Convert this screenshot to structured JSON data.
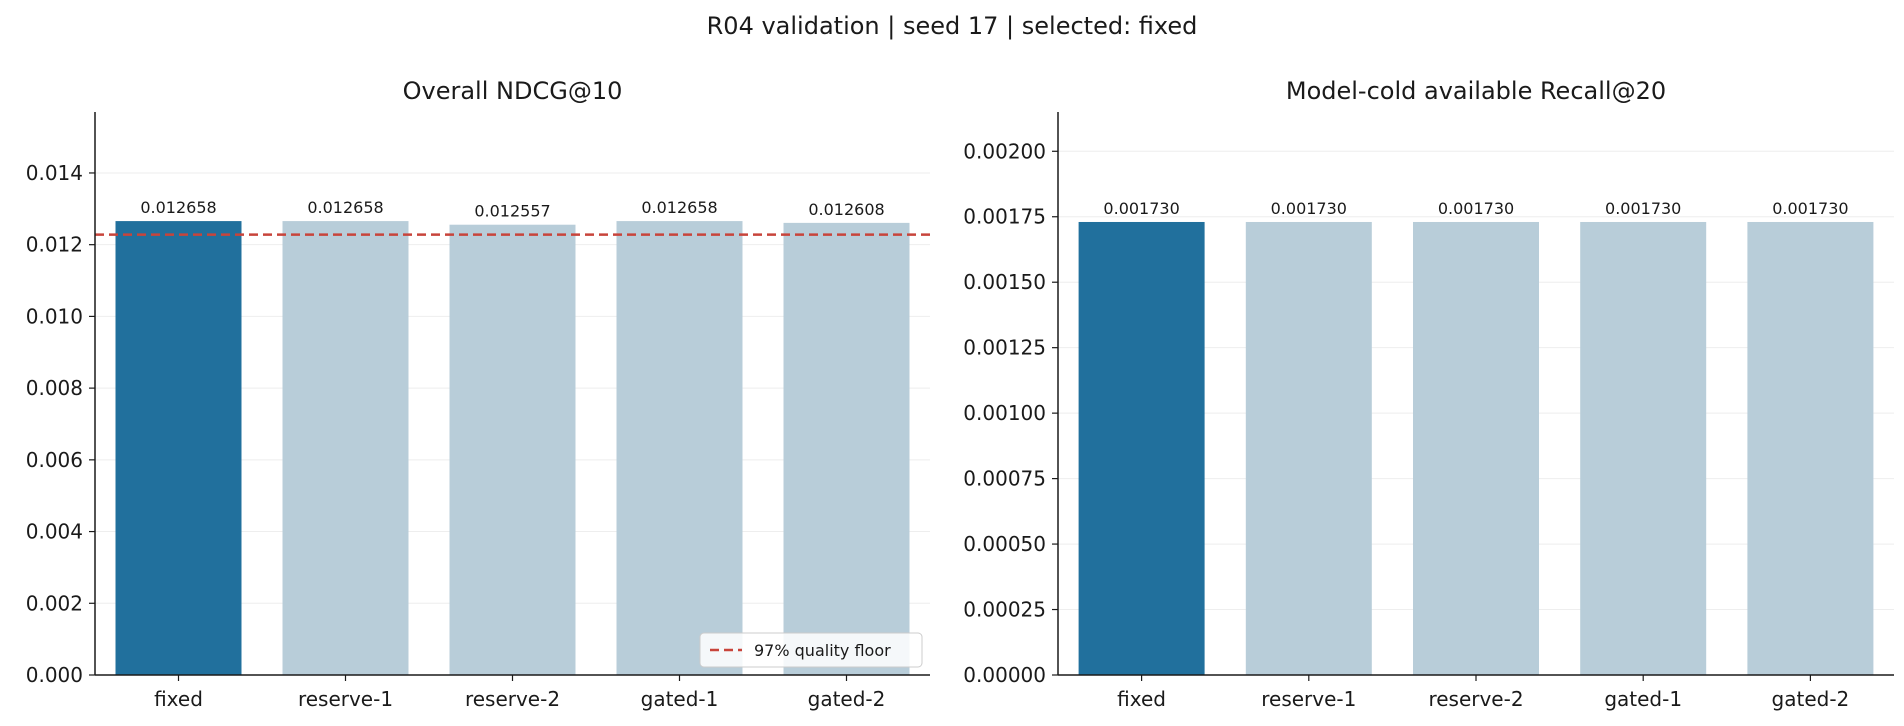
{
  "figure": {
    "suptitle": "R04 validation | seed 17 | selected: fixed"
  },
  "colors": {
    "selected": "#21709d",
    "other": "#b8cdd9",
    "floor_line": "#c8443b",
    "axis": "#1a1a1a",
    "grid": "#eeeeee"
  },
  "chart_data": [
    {
      "type": "bar",
      "title": "Overall NDCG@10",
      "xlabel": "",
      "ylabel": "",
      "categories": [
        "fixed",
        "reserve-1",
        "reserve-2",
        "gated-1",
        "gated-2"
      ],
      "values": [
        0.012658,
        0.012658,
        0.012557,
        0.012658,
        0.012608
      ],
      "value_labels": [
        "0.012658",
        "0.012658",
        "0.012557",
        "0.012658",
        "0.012608"
      ],
      "selected": "fixed",
      "ylim": [
        0,
        0.0157
      ],
      "yticks": [
        0.0,
        0.002,
        0.004,
        0.006,
        0.008,
        0.01,
        0.012,
        0.014
      ],
      "ytick_labels": [
        "0.000",
        "0.002",
        "0.004",
        "0.006",
        "0.008",
        "0.010",
        "0.012",
        "0.014"
      ],
      "reference_line": {
        "value": 0.01228,
        "label": "97% quality floor"
      },
      "legend": {
        "position": "lower-right",
        "entries": [
          "97% quality floor"
        ]
      },
      "grid": "y"
    },
    {
      "type": "bar",
      "title": "Model-cold available Recall@20",
      "xlabel": "",
      "ylabel": "",
      "categories": [
        "fixed",
        "reserve-1",
        "reserve-2",
        "gated-1",
        "gated-2"
      ],
      "values": [
        0.00173,
        0.00173,
        0.00173,
        0.00173,
        0.00173
      ],
      "value_labels": [
        "0.001730",
        "0.001730",
        "0.001730",
        "0.001730",
        "0.001730"
      ],
      "selected": "fixed",
      "ylim": [
        0,
        0.00215
      ],
      "yticks": [
        0,
        0.00025,
        0.0005,
        0.00075,
        0.001,
        0.00125,
        0.0015,
        0.00175,
        0.002
      ],
      "ytick_labels": [
        "0.00000",
        "0.00025",
        "0.00050",
        "0.00075",
        "0.00100",
        "0.00125",
        "0.00150",
        "0.00175",
        "0.00200"
      ],
      "grid": "y"
    }
  ]
}
